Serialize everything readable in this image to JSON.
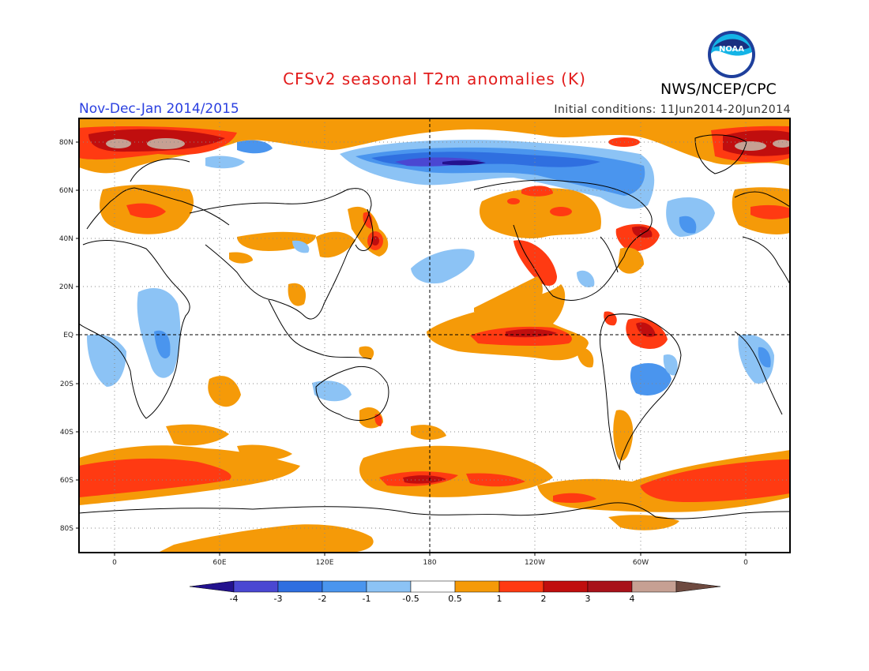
{
  "header": {
    "title": "CFSv2 seasonal T2m anomalies (K)",
    "organization": "NWS/NCEP/CPC",
    "logo_text": "NOAA",
    "period": "Nov-Dec-Jan 2014/2015",
    "initial_conditions": "Initial conditions: 11Jun2014-20Jun2014"
  },
  "map": {
    "lat_labels": [
      "80N",
      "60N",
      "40N",
      "20N",
      "EQ",
      "20S",
      "40S",
      "60S",
      "80S"
    ],
    "lon_labels": [
      "0",
      "60E",
      "120E",
      "180",
      "120W",
      "60W",
      "0"
    ],
    "colors": {
      "neg4": "#2a0fa8",
      "neg3": "#4b4fd6",
      "neg2": "#2f72e3",
      "neg1": "#5fa2f2",
      "neg05": "#98c8f6",
      "pos05": "#f5a00c",
      "pos1": "#ff3d12",
      "pos2": "#bd0f0f",
      "pos3": "#c59a8e",
      "pos4": "#7a4a3c"
    }
  },
  "colorbar": {
    "labels": [
      "-4",
      "-3",
      "-2",
      "-1",
      "-0.5",
      "0.5",
      "1",
      "2",
      "3",
      "4"
    ],
    "colors": [
      "#23128e",
      "#4a47d2",
      "#2f6fe0",
      "#4a95ee",
      "#8cc3f5",
      "#ffffff",
      "#f59a08",
      "#ff3a12",
      "#c00e0e",
      "#a8121a",
      "#c6a093",
      "#6e4a40"
    ]
  }
}
